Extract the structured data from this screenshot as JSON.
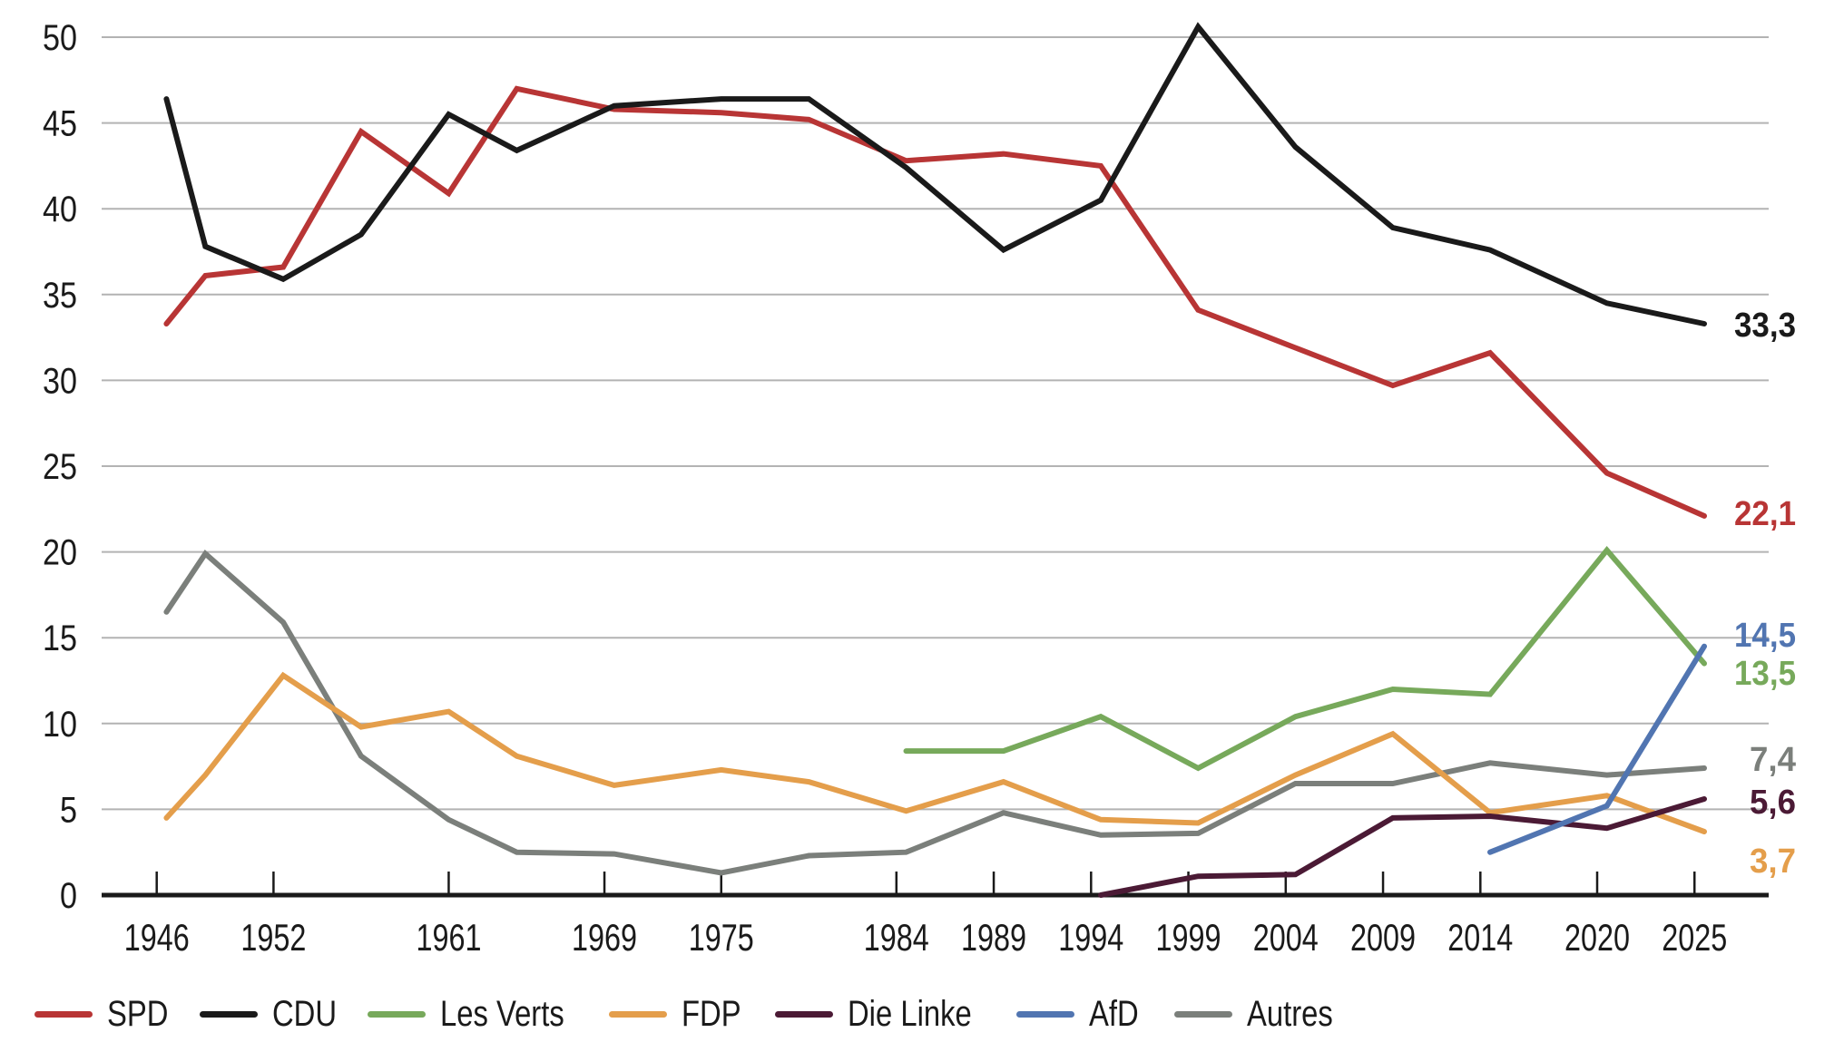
{
  "chart_data": {
    "type": "line",
    "title": "",
    "xlabel": "",
    "ylabel": "",
    "ylim": [
      0,
      50
    ],
    "xlim": [
      1943,
      2029
    ],
    "grid": true,
    "yticks": [
      "0",
      "5",
      "10",
      "15",
      "20",
      "25",
      "30",
      "35",
      "40",
      "45",
      "50"
    ],
    "ytick_values": [
      0,
      5,
      10,
      15,
      20,
      25,
      30,
      35,
      40,
      45,
      50
    ],
    "xticks": [
      "1946",
      "1952",
      "1961",
      "1969",
      "1975",
      "1984",
      "1989",
      "1994",
      "1999",
      "2004",
      "2009",
      "2014",
      "2020",
      "2025"
    ],
    "xtick_values": [
      1946,
      1952,
      1961,
      1969,
      1975,
      1984,
      1989,
      1994,
      1999,
      2004,
      2009,
      2014,
      2020,
      2025
    ],
    "legend_position": "bottom",
    "series": [
      {
        "name": "SPD",
        "color": "#b83535",
        "end_label": "22,1",
        "x": [
          1946.5,
          1948.5,
          1952.5,
          1956.5,
          1961,
          1964.5,
          1969.5,
          1975,
          1979.5,
          1984.5,
          1989.5,
          1994.5,
          1999.5,
          2004.5,
          2009.5,
          2014.5,
          2020.5,
          2025.5
        ],
        "values": [
          33.3,
          36.1,
          36.6,
          44.5,
          40.9,
          47.0,
          45.8,
          45.6,
          45.2,
          42.8,
          43.2,
          42.5,
          34.1,
          31.9,
          29.7,
          31.6,
          24.6,
          22.1
        ]
      },
      {
        "name": "CDU",
        "color": "#1a1a1a",
        "end_label": "33,3",
        "x": [
          1946.5,
          1948.5,
          1952.5,
          1956.5,
          1961,
          1964.5,
          1969.5,
          1975,
          1979.5,
          1984.5,
          1989.5,
          1994.5,
          1999.5,
          2004.5,
          2009.5,
          2014.5,
          2020.5,
          2025.5
        ],
        "values": [
          46.4,
          37.8,
          35.9,
          38.5,
          45.5,
          43.4,
          46.0,
          46.4,
          46.4,
          42.4,
          37.6,
          40.5,
          50.6,
          43.6,
          38.9,
          37.6,
          34.5,
          33.3
        ]
      },
      {
        "name": "Les Verts",
        "color": "#77a95b",
        "end_label": "13,5",
        "x": [
          1984.5,
          1989.5,
          1994.5,
          1999.5,
          2004.5,
          2009.5,
          2014.5,
          2020.5,
          2025.5
        ],
        "values": [
          8.4,
          8.4,
          10.4,
          7.4,
          10.4,
          12.0,
          11.7,
          20.1,
          13.5
        ]
      },
      {
        "name": "FDP",
        "color": "#e49e4b",
        "end_label": "3,7",
        "x": [
          1946.5,
          1948.5,
          1952.5,
          1956.5,
          1961,
          1964.5,
          1969.5,
          1975,
          1979.5,
          1984.5,
          1989.5,
          1994.5,
          1999.5,
          2004.5,
          2009.5,
          2014.5,
          2020.5,
          2025.5
        ],
        "values": [
          4.5,
          7.0,
          12.8,
          9.8,
          10.7,
          8.1,
          6.4,
          7.3,
          6.6,
          4.9,
          6.6,
          4.4,
          4.2,
          7.0,
          9.4,
          4.8,
          5.8,
          3.7
        ]
      },
      {
        "name": "Die Linke",
        "color": "#4b1a35",
        "end_label": "5,6",
        "x": [
          1994.5,
          1999.5,
          2004.5,
          2009.5,
          2014.5,
          2020.5,
          2025.5
        ],
        "values": [
          0.0,
          1.1,
          1.2,
          4.5,
          4.6,
          3.9,
          5.6
        ]
      },
      {
        "name": "AfD",
        "color": "#5175b1",
        "end_label": "14,5",
        "x": [
          2014.5,
          2020.5,
          2025.5
        ],
        "values": [
          2.5,
          5.2,
          14.5
        ]
      },
      {
        "name": "Autres",
        "color": "#7b7f7b",
        "end_label": "7,4",
        "x": [
          1946.5,
          1948.5,
          1952.5,
          1956.5,
          1961,
          1964.5,
          1969.5,
          1975,
          1979.5,
          1984.5,
          1989.5,
          1994.5,
          1999.5,
          2004.5,
          2009.5,
          2014.5,
          2020.5,
          2025.5
        ],
        "values": [
          16.5,
          19.9,
          15.9,
          8.1,
          4.4,
          2.5,
          2.4,
          1.3,
          2.3,
          2.5,
          4.8,
          3.5,
          3.6,
          6.5,
          6.5,
          7.7,
          7.0,
          7.4
        ]
      }
    ]
  },
  "legend": [
    {
      "label": "SPD",
      "color": "#b83535"
    },
    {
      "label": "CDU",
      "color": "#1a1a1a"
    },
    {
      "label": "Les Verts",
      "color": "#77a95b"
    },
    {
      "label": "FDP",
      "color": "#e49e4b"
    },
    {
      "label": "Die Linke",
      "color": "#4b1a35"
    },
    {
      "label": "AfD",
      "color": "#5175b1"
    },
    {
      "label": "Autres",
      "color": "#7b7f7b"
    }
  ]
}
